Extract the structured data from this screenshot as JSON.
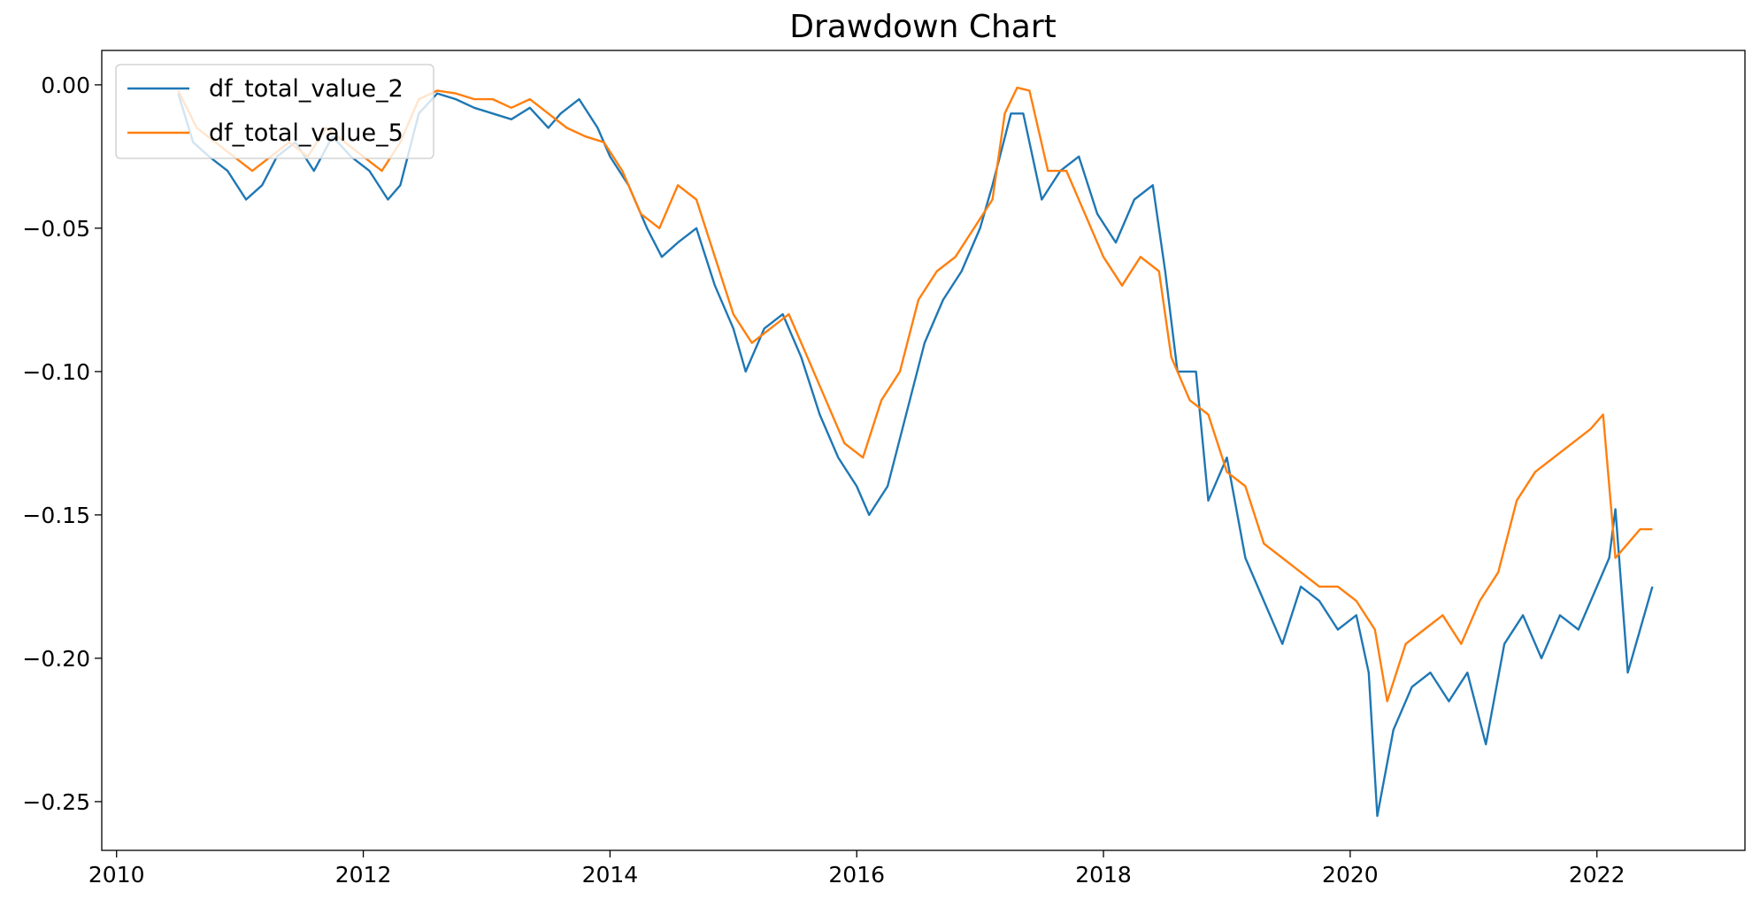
{
  "chart_data": {
    "type": "line",
    "title": "Drawdown Chart",
    "xlabel": "",
    "ylabel": "",
    "xlim": [
      2009.88,
      2023.2
    ],
    "ylim": [
      -0.267,
      0.012
    ],
    "x_ticks": [
      2010,
      2012,
      2014,
      2016,
      2018,
      2020,
      2022
    ],
    "x_tick_labels": [
      "2010",
      "2012",
      "2014",
      "2016",
      "2018",
      "2020",
      "2022"
    ],
    "y_ticks": [
      0.0,
      -0.05,
      -0.1,
      -0.15,
      -0.2,
      -0.25
    ],
    "y_tick_labels": [
      "0.00",
      "−0.05",
      "−0.10",
      "−0.15",
      "−0.20",
      "−0.25"
    ],
    "grid": false,
    "legend_position": "upper-left",
    "series": [
      {
        "name": "df_total_value_2",
        "color": "#1f77b4",
        "x": [
          2010.5,
          2010.62,
          2010.75,
          2010.9,
          2011.05,
          2011.18,
          2011.3,
          2011.45,
          2011.6,
          2011.75,
          2011.9,
          2012.05,
          2012.2,
          2012.3,
          2012.45,
          2012.6,
          2012.75,
          2012.9,
          2013.05,
          2013.2,
          2013.35,
          2013.5,
          2013.6,
          2013.75,
          2013.9,
          2014.0,
          2014.15,
          2014.3,
          2014.42,
          2014.55,
          2014.7,
          2014.85,
          2015.0,
          2015.1,
          2015.25,
          2015.4,
          2015.55,
          2015.7,
          2015.85,
          2016.0,
          2016.1,
          2016.25,
          2016.4,
          2016.55,
          2016.7,
          2016.85,
          2017.0,
          2017.1,
          2017.25,
          2017.35,
          2017.5,
          2017.65,
          2017.8,
          2017.95,
          2018.1,
          2018.25,
          2018.4,
          2018.5,
          2018.6,
          2018.75,
          2018.85,
          2019.0,
          2019.15,
          2019.3,
          2019.45,
          2019.6,
          2019.75,
          2019.9,
          2020.05,
          2020.15,
          2020.22,
          2020.35,
          2020.5,
          2020.65,
          2020.8,
          2020.95,
          2021.1,
          2021.25,
          2021.4,
          2021.55,
          2021.7,
          2021.85,
          2022.0,
          2022.1,
          2022.15,
          2022.25,
          2022.35,
          2022.45
        ],
        "y": [
          -0.003,
          -0.02,
          -0.025,
          -0.03,
          -0.04,
          -0.035,
          -0.025,
          -0.02,
          -0.03,
          -0.018,
          -0.025,
          -0.03,
          -0.04,
          -0.035,
          -0.01,
          -0.003,
          -0.005,
          -0.008,
          -0.01,
          -0.012,
          -0.008,
          -0.015,
          -0.01,
          -0.005,
          -0.015,
          -0.025,
          -0.035,
          -0.05,
          -0.06,
          -0.055,
          -0.05,
          -0.07,
          -0.085,
          -0.1,
          -0.085,
          -0.08,
          -0.095,
          -0.115,
          -0.13,
          -0.14,
          -0.15,
          -0.14,
          -0.115,
          -0.09,
          -0.075,
          -0.065,
          -0.05,
          -0.035,
          -0.01,
          -0.01,
          -0.04,
          -0.03,
          -0.025,
          -0.045,
          -0.055,
          -0.04,
          -0.035,
          -0.065,
          -0.1,
          -0.1,
          -0.145,
          -0.13,
          -0.165,
          -0.18,
          -0.195,
          -0.175,
          -0.18,
          -0.19,
          -0.185,
          -0.205,
          -0.255,
          -0.225,
          -0.21,
          -0.205,
          -0.215,
          -0.205,
          -0.23,
          -0.195,
          -0.185,
          -0.2,
          -0.185,
          -0.19,
          -0.175,
          -0.165,
          -0.148,
          -0.205,
          -0.19,
          -0.175
        ]
      },
      {
        "name": "df_total_value_5",
        "color": "#ff7f0e",
        "x": [
          2010.5,
          2010.65,
          2010.8,
          2010.95,
          2011.1,
          2011.25,
          2011.4,
          2011.55,
          2011.7,
          2011.85,
          2012.0,
          2012.15,
          2012.3,
          2012.45,
          2012.6,
          2012.75,
          2012.9,
          2013.05,
          2013.2,
          2013.35,
          2013.5,
          2013.65,
          2013.8,
          2013.95,
          2014.1,
          2014.25,
          2014.4,
          2014.55,
          2014.7,
          2014.85,
          2015.0,
          2015.15,
          2015.3,
          2015.45,
          2015.6,
          2015.75,
          2015.9,
          2016.05,
          2016.2,
          2016.35,
          2016.5,
          2016.65,
          2016.8,
          2016.95,
          2017.1,
          2017.2,
          2017.3,
          2017.4,
          2017.55,
          2017.7,
          2017.85,
          2018.0,
          2018.15,
          2018.3,
          2018.45,
          2018.55,
          2018.7,
          2018.85,
          2019.0,
          2019.15,
          2019.3,
          2019.45,
          2019.6,
          2019.75,
          2019.9,
          2020.05,
          2020.2,
          2020.3,
          2020.45,
          2020.6,
          2020.75,
          2020.9,
          2021.05,
          2021.2,
          2021.35,
          2021.5,
          2021.65,
          2021.8,
          2021.95,
          2022.05,
          2022.15,
          2022.25,
          2022.35,
          2022.45
        ],
        "y": [
          -0.002,
          -0.015,
          -0.02,
          -0.025,
          -0.03,
          -0.025,
          -0.02,
          -0.025,
          -0.015,
          -0.02,
          -0.025,
          -0.03,
          -0.02,
          -0.005,
          -0.002,
          -0.003,
          -0.005,
          -0.005,
          -0.008,
          -0.005,
          -0.01,
          -0.015,
          -0.018,
          -0.02,
          -0.03,
          -0.045,
          -0.05,
          -0.035,
          -0.04,
          -0.06,
          -0.08,
          -0.09,
          -0.085,
          -0.08,
          -0.095,
          -0.11,
          -0.125,
          -0.13,
          -0.11,
          -0.1,
          -0.075,
          -0.065,
          -0.06,
          -0.05,
          -0.04,
          -0.01,
          -0.001,
          -0.002,
          -0.03,
          -0.03,
          -0.045,
          -0.06,
          -0.07,
          -0.06,
          -0.065,
          -0.095,
          -0.11,
          -0.115,
          -0.135,
          -0.14,
          -0.16,
          -0.165,
          -0.17,
          -0.175,
          -0.175,
          -0.18,
          -0.19,
          -0.215,
          -0.195,
          -0.19,
          -0.185,
          -0.195,
          -0.18,
          -0.17,
          -0.145,
          -0.135,
          -0.13,
          -0.125,
          -0.12,
          -0.115,
          -0.165,
          -0.16,
          -0.155,
          -0.155
        ]
      }
    ]
  }
}
